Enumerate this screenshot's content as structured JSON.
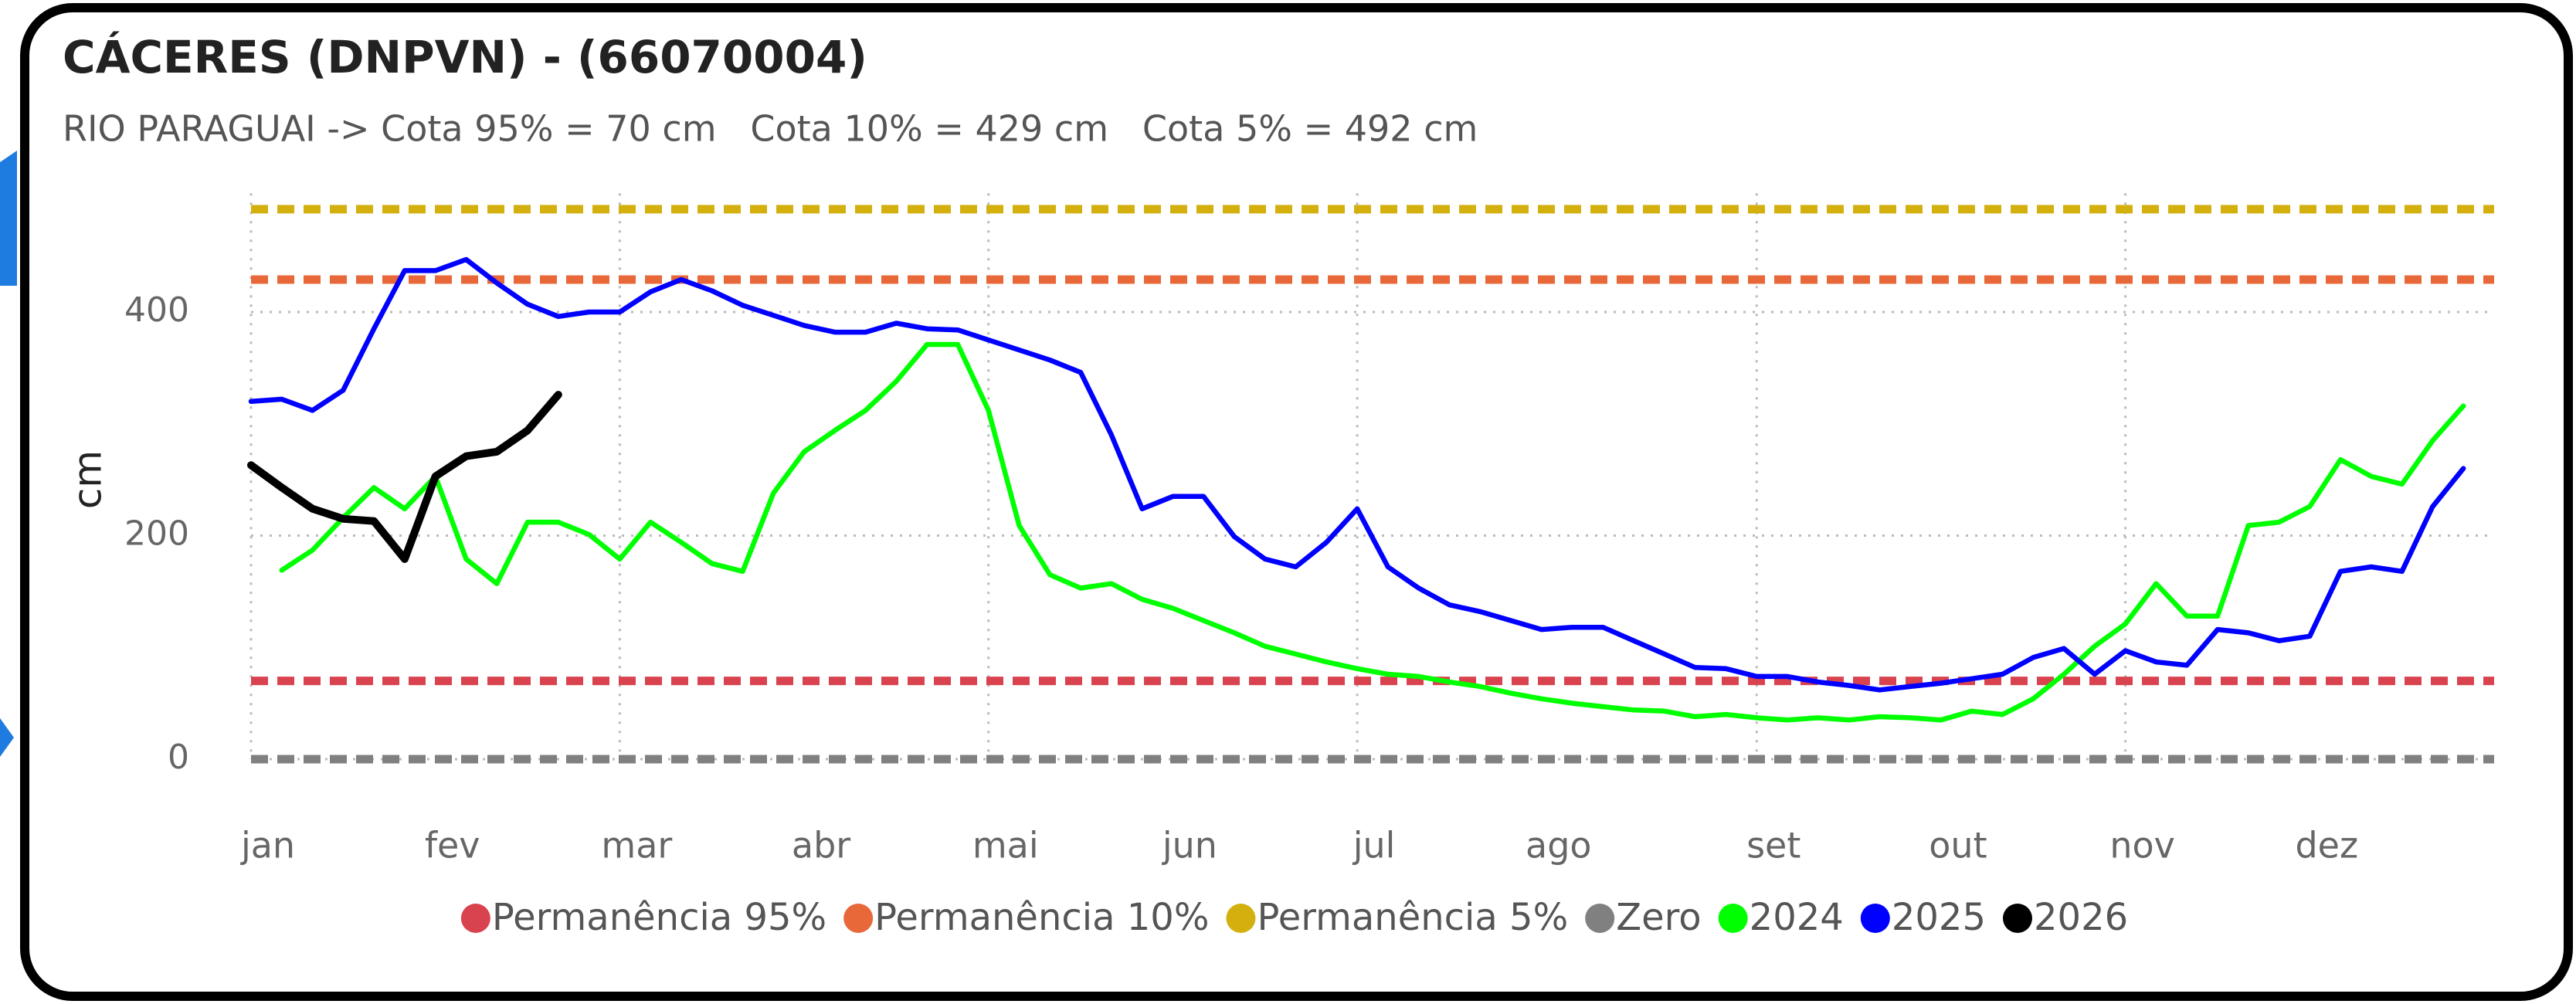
{
  "chart_data": {
    "type": "line",
    "title": "CÁCERES (DNPVN) - (66070004)",
    "subtitle": "RIO PARAGUAI -> Cota 95% = 70 cm   Cota 10% = 429 cm   Cota 5% = 492 cm",
    "y_label": "cm",
    "categories": [
      "jan",
      null,
      null,
      null,
      null,
      null,
      "fev",
      null,
      null,
      null,
      null,
      null,
      "mar",
      null,
      null,
      null,
      null,
      null,
      "abr",
      null,
      null,
      null,
      null,
      null,
      "mai",
      null,
      null,
      null,
      null,
      null,
      "jun",
      null,
      null,
      null,
      null,
      null,
      "jul",
      null,
      null,
      null,
      null,
      null,
      "ago",
      null,
      null,
      null,
      null,
      null,
      null,
      "set",
      null,
      null,
      null,
      null,
      null,
      "out",
      null,
      null,
      null,
      null,
      null,
      "nov",
      null,
      null,
      null,
      null,
      null,
      "dez",
      null,
      null,
      null,
      null,
      null
    ],
    "ylim": [
      0,
      520
    ],
    "yticks": [
      0,
      200,
      400
    ],
    "grid": true,
    "legend": "bottom",
    "reference_lines": [
      {
        "name": "Permanência 95%",
        "color": "#d9434f",
        "value": 70
      },
      {
        "name": "Permanência 10%",
        "color": "#e8683a",
        "value": 429
      },
      {
        "name": "Permanência 5%",
        "color": "#d4b00f",
        "value": 492
      },
      {
        "name": "Zero",
        "color": "#808080",
        "value": 0
      }
    ],
    "series": [
      {
        "name": "2024",
        "color": "#00ff00",
        "values": [
          null,
          169,
          187,
          216,
          243,
          224,
          253,
          179,
          157,
          212,
          212,
          201,
          179,
          212,
          194,
          175,
          168,
          238,
          275,
          294,
          312,
          338,
          371,
          371,
          312,
          209,
          165,
          153,
          157,
          143,
          135,
          124,
          113,
          101,
          94,
          87,
          81,
          76,
          74,
          69,
          65,
          59,
          54,
          50,
          47,
          44,
          43,
          38,
          40,
          37,
          35,
          37,
          35,
          38,
          37,
          35,
          43,
          40,
          54,
          76,
          101,
          121,
          157,
          128,
          128,
          209,
          212,
          226,
          268,
          253,
          246,
          285,
          316
        ]
      },
      {
        "name": "2025",
        "color": "#0000ff",
        "values": [
          320,
          322,
          312,
          330,
          385,
          437,
          437,
          447,
          426,
          407,
          396,
          400,
          400,
          418,
          429,
          419,
          406,
          397,
          388,
          382,
          382,
          390,
          385,
          384,
          375,
          366,
          357,
          346,
          290,
          224,
          235,
          235,
          199,
          179,
          172,
          194,
          224,
          172,
          153,
          138,
          132,
          124,
          116,
          118,
          118,
          106,
          94,
          82,
          81,
          74,
          74,
          69,
          66,
          62,
          65,
          68,
          72,
          76,
          91,
          99,
          76,
          97,
          87,
          84,
          116,
          113,
          106,
          110,
          168,
          172,
          168,
          226,
          260
        ]
      },
      {
        "name": "2026",
        "color": "#000000",
        "values": [
          263,
          243,
          224,
          215,
          213,
          179,
          253,
          271,
          275,
          294,
          326,
          null,
          null,
          null,
          null,
          null,
          null,
          null,
          null,
          null,
          null,
          null,
          null,
          null,
          null,
          null,
          null,
          null,
          null,
          null,
          null,
          null,
          null,
          null,
          null,
          null,
          null,
          null,
          null,
          null,
          null,
          null,
          null,
          null,
          null,
          null,
          null,
          null,
          null,
          null,
          null,
          null,
          null,
          null,
          null,
          null,
          null,
          null,
          null,
          null,
          null,
          null,
          null,
          null,
          null,
          null,
          null,
          null,
          null,
          null,
          null,
          null,
          null
        ]
      }
    ]
  }
}
